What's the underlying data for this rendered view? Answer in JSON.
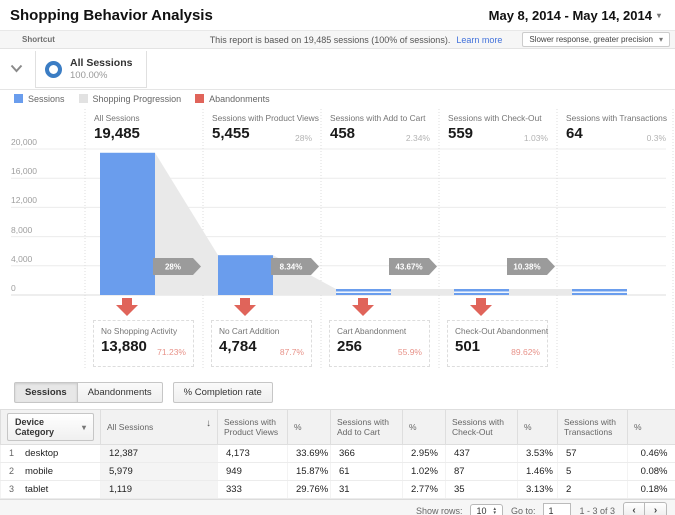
{
  "header": {
    "title": "Shopping Behavior Analysis",
    "date_range": "May 8, 2014 - May 14, 2014"
  },
  "shortcut_bar": {
    "shortcut_label": "Shortcut",
    "report_note": "This report is based on 19,485 sessions (100% of sessions).",
    "learn_more": "Learn more",
    "precision_selector": "Slower response, greater precision"
  },
  "segment": {
    "name": "All Sessions",
    "percent": "100.00%"
  },
  "legend": {
    "items": [
      {
        "label": "Sessions",
        "color": "#6a9ded"
      },
      {
        "label": "Shopping Progression",
        "color": "#e2e2e2"
      },
      {
        "label": "Abandonments",
        "color": "#e0645a"
      }
    ]
  },
  "chart_data": {
    "type": "funnel-bar",
    "ylim": [
      0,
      20000
    ],
    "yticks": [
      {
        "value": 20000,
        "label": "20,000"
      },
      {
        "value": 16000,
        "label": "16,000"
      },
      {
        "value": 12000,
        "label": "12,000"
      },
      {
        "value": 8000,
        "label": "8,000"
      },
      {
        "value": 4000,
        "label": "4,000"
      },
      {
        "value": 0,
        "label": "0"
      }
    ],
    "stages": [
      {
        "label": "All Sessions",
        "value": 19485,
        "display": "19,485",
        "percent": ""
      },
      {
        "label": "Sessions with Product Views",
        "value": 5455,
        "display": "5,455",
        "percent": "28%"
      },
      {
        "label": "Sessions with Add to Cart",
        "value": 458,
        "display": "458",
        "percent": "2.34%"
      },
      {
        "label": "Sessions with Check-Out",
        "value": 559,
        "display": "559",
        "percent": "1.03%"
      },
      {
        "label": "Sessions with Transactions",
        "value": 64,
        "display": "64",
        "percent": "0.3%"
      }
    ],
    "progression_arrows": [
      "28%",
      "8.34%",
      "43.67%",
      "10.38%"
    ],
    "abandonments": [
      {
        "label": "No Shopping Activity",
        "display": "13,880",
        "percent": "71.23%"
      },
      {
        "label": "No Cart Addition",
        "display": "4,784",
        "percent": "87.7%"
      },
      {
        "label": "Cart Abandonment",
        "display": "256",
        "percent": "55.9%"
      },
      {
        "label": "Check-Out Abandonment",
        "display": "501",
        "percent": "89.62%"
      }
    ],
    "colors": {
      "bar": "#6a9ded",
      "progression": "#e9e9e9",
      "abandon_arrow": "#e0645a",
      "progress_arrow": "#9b9b9b",
      "gridline": "#ececec"
    }
  },
  "table": {
    "tabs": [
      {
        "label": "Sessions",
        "active": true
      },
      {
        "label": "Abandonments",
        "active": false
      }
    ],
    "completion_button": "% Completion rate",
    "columns": {
      "device": "Device Category",
      "all_sessions": "All Sessions",
      "pv": "Sessions with Product Views",
      "pct": "%",
      "atc": "Sessions with Add to Cart",
      "co": "Sessions with Check-Out",
      "tx": "Sessions with Transactions"
    },
    "rows": [
      {
        "index": "1",
        "device": "desktop",
        "all_sessions": "12,387",
        "pv": "4,173",
        "pv_pct": "33.69%",
        "atc": "366",
        "atc_pct": "2.95%",
        "co": "437",
        "co_pct": "3.53%",
        "tx": "57",
        "tx_pct": "0.46%"
      },
      {
        "index": "2",
        "device": "mobile",
        "all_sessions": "5,979",
        "pv": "949",
        "pv_pct": "15.87%",
        "atc": "61",
        "atc_pct": "1.02%",
        "co": "87",
        "co_pct": "1.46%",
        "tx": "5",
        "tx_pct": "0.08%"
      },
      {
        "index": "3",
        "device": "tablet",
        "all_sessions": "1,119",
        "pv": "333",
        "pv_pct": "29.76%",
        "atc": "31",
        "atc_pct": "2.77%",
        "co": "35",
        "co_pct": "3.13%",
        "tx": "2",
        "tx_pct": "0.18%"
      }
    ],
    "footer": {
      "show_rows_label": "Show rows:",
      "show_rows_value": "10",
      "goto_label": "Go to:",
      "goto_value": "1",
      "range": "1 - 3 of 3",
      "prev": "‹",
      "next": "›"
    }
  }
}
